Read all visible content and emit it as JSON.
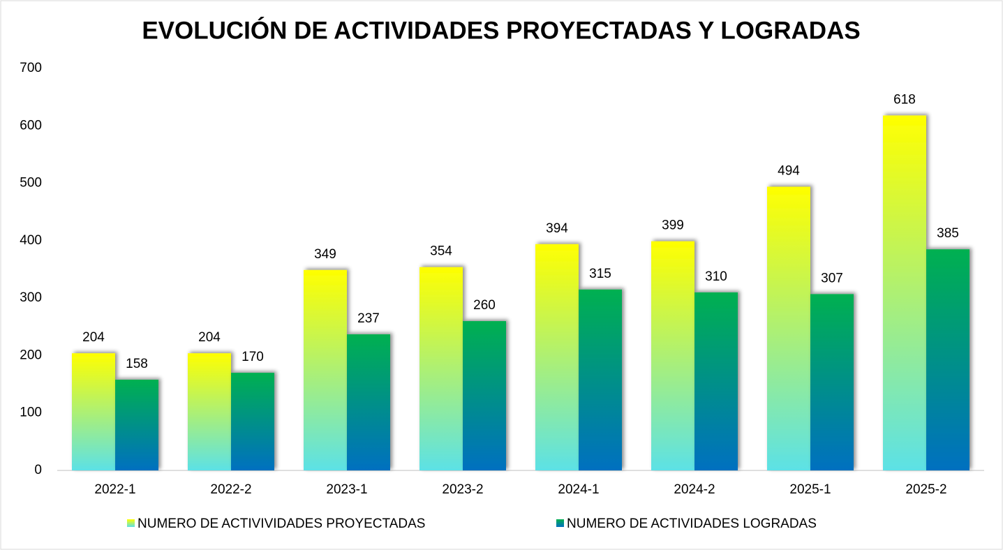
{
  "chart_data": {
    "type": "bar",
    "title": "EVOLUCIÓN DE ACTIVIDADES  PROYECTADAS  Y LOGRADAS",
    "categories": [
      "2022-1",
      "2022-2",
      "2023-1",
      "2023-2",
      "2024-1",
      "2024-2",
      "2025-1",
      "2025-2"
    ],
    "series": [
      {
        "name": "NUMERO DE ACTIVIVIDADES PROYECTADAS",
        "color": [
          "#ffff00",
          "#5ce1e6"
        ],
        "values": [
          204,
          204,
          349,
          354,
          394,
          399,
          494,
          618
        ]
      },
      {
        "name": "NUMERO DE ACTIVIDADES LOGRADAS",
        "color": [
          "#00b050",
          "#0070c0"
        ],
        "values": [
          158,
          170,
          237,
          260,
          315,
          310,
          307,
          385
        ]
      }
    ],
    "ylim": [
      0,
      700
    ],
    "yticks": [
      0,
      100,
      200,
      300,
      400,
      500,
      600,
      700
    ],
    "grid": false,
    "legend": "bottom"
  }
}
